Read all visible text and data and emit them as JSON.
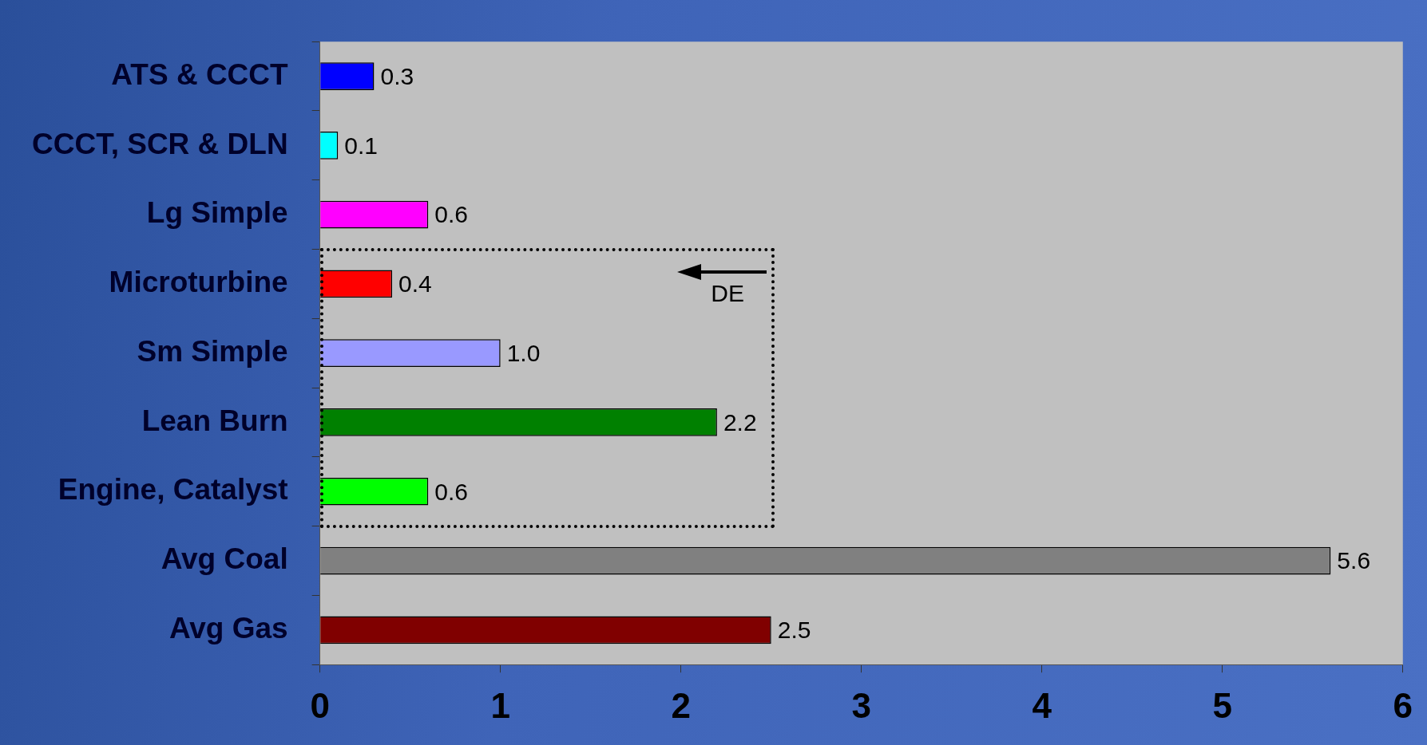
{
  "chart_data": {
    "type": "bar",
    "orientation": "horizontal",
    "categories": [
      "ATS & CCCT",
      "CCCT, SCR & DLN",
      "Lg Simple",
      "Microturbine",
      "Sm Simple",
      "Lean Burn",
      "Engine, Catalyst",
      "Avg Coal",
      "Avg Gas"
    ],
    "values": [
      0.3,
      0.1,
      0.6,
      0.4,
      1.0,
      2.2,
      0.6,
      5.6,
      2.5
    ],
    "colors": [
      "#0000ff",
      "#00ffff",
      "#ff00ff",
      "#ff0000",
      "#9999ff",
      "#008000",
      "#00ff00",
      "#808080",
      "#800000"
    ],
    "value_labels": [
      "0.3",
      "0.1",
      "0.6",
      "0.4",
      "1.0",
      "2.2",
      "0.6",
      "5.6",
      "2.5"
    ],
    "xlim": [
      0,
      6
    ],
    "xticks": [
      0,
      1,
      2,
      3,
      4,
      5,
      6
    ],
    "annotations": [
      "DE"
    ],
    "grid": false,
    "legend": false
  }
}
